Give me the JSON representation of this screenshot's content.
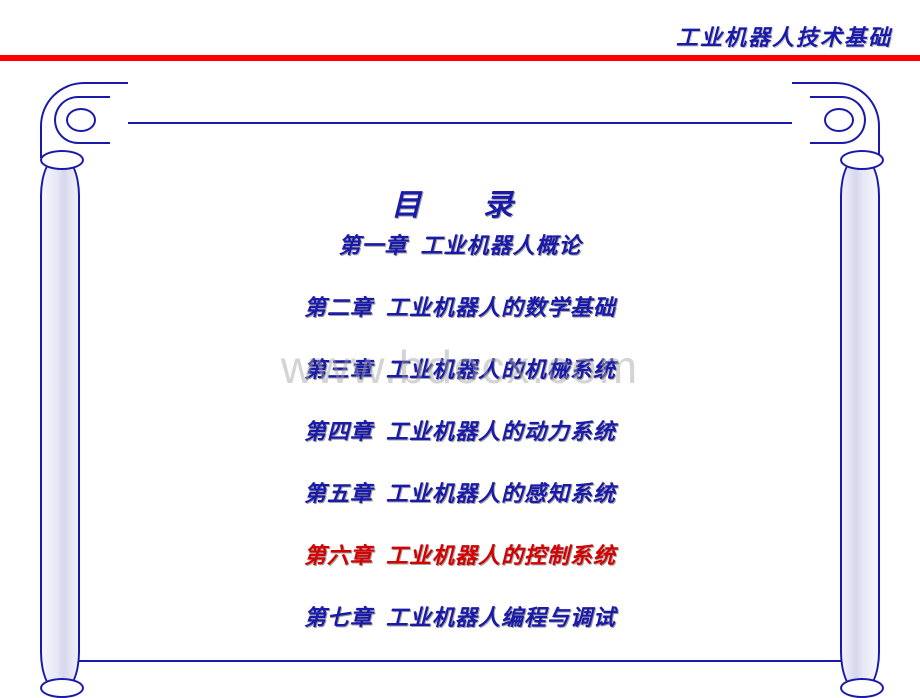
{
  "header": {
    "title": "工业机器人技术基础"
  },
  "colors": {
    "text_primary": "#1a1aaa",
    "highlight": "#d40000",
    "rule": "#ff0000",
    "background": "#ffffff"
  },
  "watermark": "www.bdocx.com",
  "toc": {
    "title": "目　录",
    "items": [
      {
        "text": "第一章  工业机器人概论",
        "highlighted": false
      },
      {
        "text": "第二章  工业机器人的数学基础",
        "highlighted": false
      },
      {
        "text": "第三章  工业机器人的机械系统",
        "highlighted": false
      },
      {
        "text": "第四章  工业机器人的动力系统",
        "highlighted": false
      },
      {
        "text": "第五章  工业机器人的感知系统",
        "highlighted": false
      },
      {
        "text": "第六章  工业机器人的控制系统",
        "highlighted": true
      },
      {
        "text": "第七章  工业机器人编程与调试",
        "highlighted": false
      }
    ]
  }
}
